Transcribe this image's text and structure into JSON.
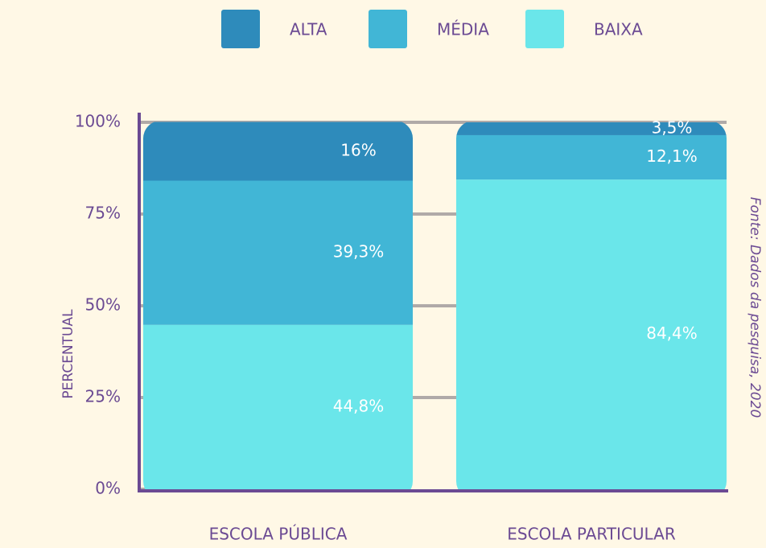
{
  "chart_data": {
    "type": "stacked_bar",
    "categories": [
      "ESCOLA PÚBLICA",
      "ESCOLA PARTICULAR"
    ],
    "series": [
      {
        "name": "BAIXA",
        "color": "#6ae6ea",
        "values": [
          44.8,
          84.4
        ],
        "value_labels": [
          "44,8%",
          "84,4%"
        ]
      },
      {
        "name": "MÉDIA",
        "color": "#41b6d6",
        "values": [
          39.3,
          12.1
        ],
        "value_labels": [
          "39,3%",
          "12,1%"
        ]
      },
      {
        "name": "ALTA",
        "color": "#2e8bbb",
        "values": [
          16,
          3.5
        ],
        "value_labels": [
          "16%",
          "3,5%"
        ]
      }
    ],
    "legend_order": [
      "ALTA",
      "MÉDIA",
      "BAIXA"
    ],
    "ylabel": "PERCENTUAL",
    "source": "Fonte: Dados da pesquisa, 2020",
    "ylim": [
      0,
      100
    ],
    "yticks": [
      {
        "value": 0,
        "label": "0%"
      },
      {
        "value": 25,
        "label": "25%"
      },
      {
        "value": 50,
        "label": "50%"
      },
      {
        "value": 75,
        "label": "75%"
      },
      {
        "value": 100,
        "label": "100%"
      }
    ],
    "grid": true
  }
}
